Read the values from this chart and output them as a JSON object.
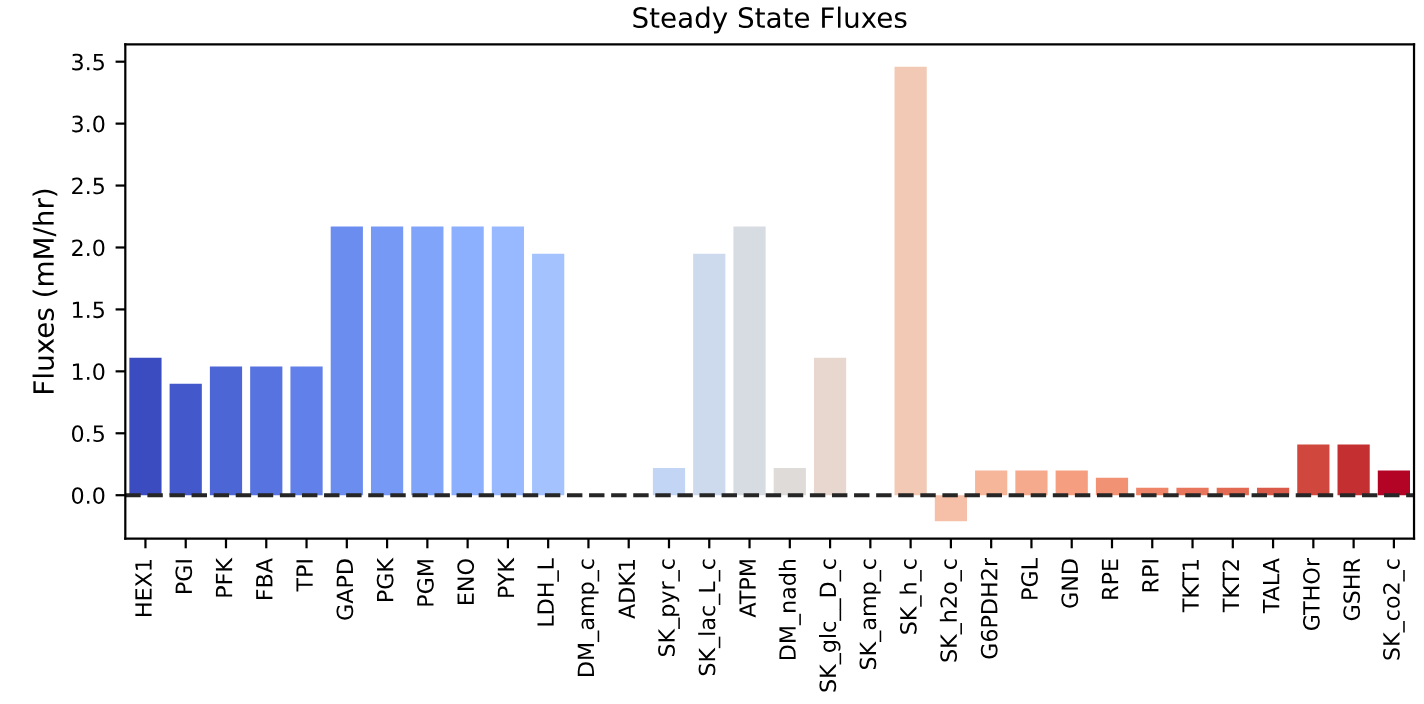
{
  "chart_data": {
    "type": "bar",
    "title": "Steady State Fluxes",
    "ylabel": "Fluxes (mM/hr)",
    "categories": [
      "HEX1",
      "PGI",
      "PFK",
      "FBA",
      "TPI",
      "GAPD",
      "PGK",
      "PGM",
      "ENO",
      "PYK",
      "LDH_L",
      "DM_amp_c",
      "ADK1",
      "SK_pyr_c",
      "SK_lac_L_c",
      "ATPM",
      "DM_nadh",
      "SK_glc__D_c",
      "SK_amp_c",
      "SK_h_c",
      "SK_h2o_c",
      "G6PDH2r",
      "PGL",
      "GND",
      "RPE",
      "RPI",
      "TKT1",
      "TKT2",
      "TALA",
      "GTHOr",
      "GSHR",
      "SK_co2_c"
    ],
    "values": [
      1.11,
      0.9,
      1.04,
      1.04,
      1.04,
      2.17,
      2.17,
      2.17,
      2.17,
      2.17,
      1.95,
      0,
      0,
      0.22,
      1.95,
      2.17,
      0.22,
      1.11,
      0,
      3.46,
      -0.21,
      0.2,
      0.2,
      0.2,
      0.14,
      0.06,
      0.06,
      0.06,
      0.06,
      0.41,
      0.41,
      0.2
    ],
    "colors": [
      "#3b4cc0",
      "#4358cb",
      "#4c66d6",
      "#5673e0",
      "#6180e9",
      "#6b8df0",
      "#7699f6",
      "#81a4fb",
      "#8caffe",
      "#98b9ff",
      "#a3c2fe",
      "#aec9fc",
      "#b9d0f9",
      "#c3d5f4",
      "#cdd9ec",
      "#d7dce3",
      "#dfdbd9",
      "#e7d7ce",
      "#edd1c2",
      "#f2c9b4",
      "#f5c0a7",
      "#f6b69a",
      "#f6aa8d",
      "#f59f80",
      "#f29274",
      "#ee8468",
      "#e8765c",
      "#e26952",
      "#da5a49",
      "#d0473d",
      "#c43032",
      "#b40426"
    ],
    "ylim": [
      -0.35,
      3.64
    ],
    "yticks": [
      {
        "value": 0,
        "label": "0.0"
      },
      0.5,
      {
        "value": 1,
        "label": "1.0"
      },
      1.5,
      {
        "value": 2,
        "label": "2.0"
      },
      2.5,
      {
        "value": 3,
        "label": "3.0"
      },
      3.5
    ],
    "ref_lines": [
      {
        "axis": "y",
        "value": 0,
        "color": "#262626",
        "line_style": "dashed"
      }
    ]
  }
}
